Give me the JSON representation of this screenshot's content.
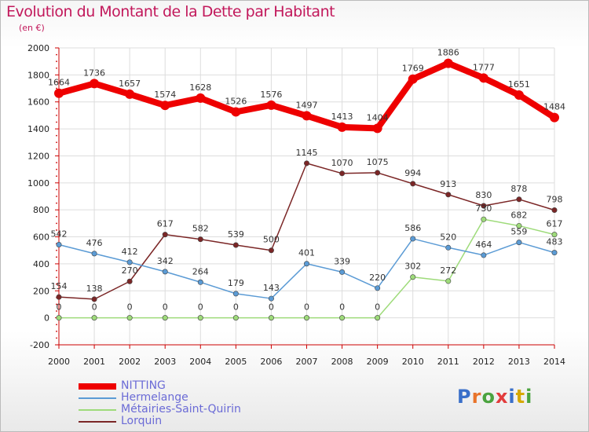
{
  "title": "Evolution du Montant de la Dette par Habitant",
  "subtitle": "(en €)",
  "logo": "Proxiti",
  "colors": {
    "title": "#c2185b",
    "legend_text": "#6b6bd6",
    "axis": "#cc0000",
    "grid": "#dddddd"
  },
  "chart_data": {
    "type": "line",
    "x": [
      "2000",
      "2001",
      "2002",
      "2003",
      "2004",
      "2005",
      "2006",
      "2007",
      "2008",
      "2009",
      "2010",
      "2011",
      "2012",
      "2013",
      "2014"
    ],
    "ylim": [
      -200,
      2000
    ],
    "yticks": [
      "-200",
      "0",
      "200",
      "400",
      "600",
      "800",
      "1000",
      "1200",
      "1400",
      "1600",
      "1800",
      "2000"
    ],
    "grid": true,
    "legend_position": "bottom-left",
    "series": [
      {
        "name": "NITTING",
        "color": "#ee0000",
        "width": 8,
        "values": [
          1664,
          1736,
          1657,
          1574,
          1628,
          1526,
          1576,
          1497,
          1413,
          1404,
          1769,
          1886,
          1777,
          1651,
          1484
        ],
        "labels": [
          "1664",
          "1736",
          "1657",
          "1574",
          "1628",
          "1526",
          "1576",
          "1497",
          "1413",
          "1404",
          "1769",
          "1886",
          "1777",
          "1651",
          "1484"
        ]
      },
      {
        "name": "Hermelange",
        "color": "#5b9bd5",
        "width": 1.5,
        "values": [
          542,
          476,
          412,
          342,
          264,
          179,
          143,
          401,
          339,
          220,
          586,
          520,
          464,
          559,
          483
        ],
        "labels": [
          "542",
          "476",
          "412",
          "342",
          "264",
          "179",
          "143",
          "401",
          "339",
          "220",
          "586",
          "520",
          "464",
          "559",
          "483"
        ]
      },
      {
        "name": "Métairies-Saint-Quirin",
        "color": "#9edb7a",
        "width": 1.5,
        "values": [
          0,
          0,
          0,
          0,
          0,
          0,
          0,
          0,
          0,
          0,
          302,
          272,
          730,
          682,
          617
        ],
        "labels": [
          "0",
          "0",
          "0",
          "0",
          "0",
          "0",
          "0",
          "0",
          "0",
          "0",
          "302",
          "272",
          "730",
          "682",
          "617"
        ]
      },
      {
        "name": "Lorquin",
        "color": "#7b2626",
        "width": 1.5,
        "values": [
          154,
          138,
          270,
          617,
          582,
          539,
          500,
          1145,
          1070,
          1075,
          994,
          913,
          830,
          878,
          798
        ],
        "labels": [
          "154",
          "138",
          "270",
          "617",
          "582",
          "539",
          "500",
          "1145",
          "1070",
          "1075",
          "994",
          "913",
          "830",
          "878",
          "798"
        ]
      }
    ]
  }
}
